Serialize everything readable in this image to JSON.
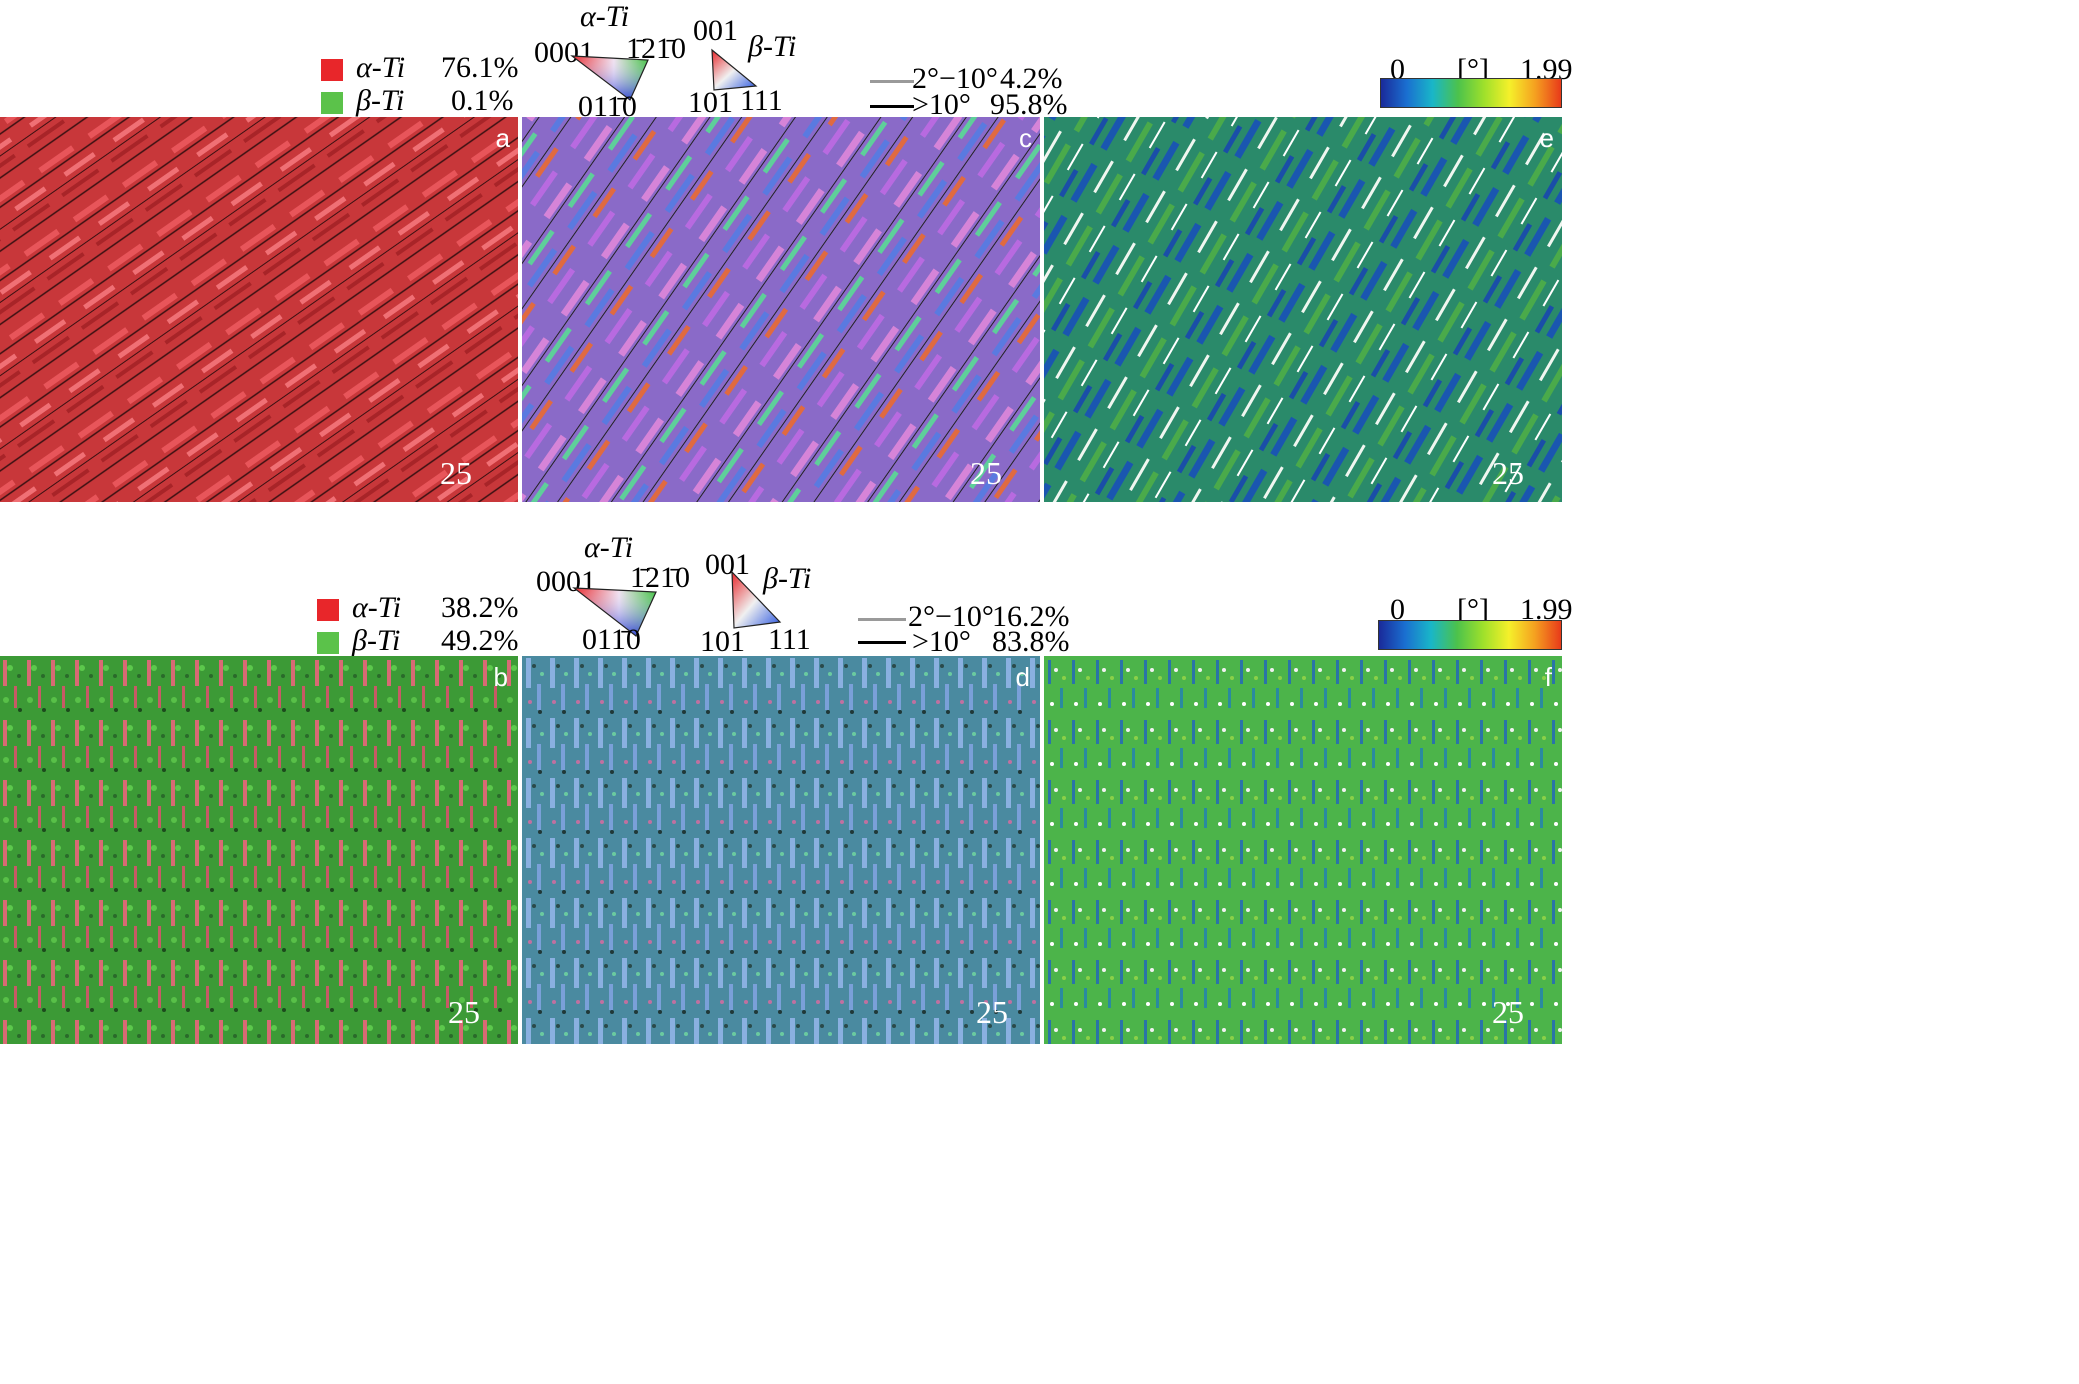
{
  "colors": {
    "alpha_phase": "#e8262a",
    "beta_phase": "#5bc24a",
    "low_angle_boundary": "#9a9a9a",
    "high_angle_boundary": "#000000"
  },
  "rows": [
    {
      "phase_legend": {
        "alpha": {
          "name": "α-Ti",
          "fraction": "76.1%"
        },
        "beta": {
          "name": "β-Ti",
          "fraction": "0.1%"
        }
      },
      "ipf_legend": {
        "alpha_title": "α-Ti",
        "alpha_corner_0001": "0001",
        "alpha_corner_1210": "1̄21̄0",
        "alpha_corner_0110": "011̄0",
        "beta_corner_001": "001",
        "beta_title": "β-Ti",
        "beta_corner_101": "101",
        "beta_corner_111": "111"
      },
      "boundary_legend": {
        "low_range": "2°−10°",
        "low_fraction": "4.2%",
        "high_range": ">10°",
        "high_fraction": "95.8%"
      },
      "kam_legend": {
        "min": "0",
        "unit": "[°]",
        "max": "1.99"
      },
      "panels": [
        {
          "label": "a",
          "scale_bar": "25 μm"
        },
        {
          "label": "c",
          "scale_bar": "25 μm"
        },
        {
          "label": "e",
          "scale_bar": "25 μm"
        }
      ]
    },
    {
      "phase_legend": {
        "alpha": {
          "name": "α-Ti",
          "fraction": "38.2%"
        },
        "beta": {
          "name": "β-Ti",
          "fraction": "49.2%"
        }
      },
      "ipf_legend": {
        "alpha_title": "α-Ti",
        "alpha_corner_0001": "0001",
        "alpha_corner_1210": "1̄21̄0",
        "alpha_corner_0110": "011̄0",
        "beta_corner_001": "001",
        "beta_title": "β-Ti",
        "beta_corner_101": "101",
        "beta_corner_111": "111"
      },
      "boundary_legend": {
        "low_range": "2°−10°",
        "low_fraction": "16.2%",
        "high_range": ">10°",
        "high_fraction": "83.8%"
      },
      "kam_legend": {
        "min": "0",
        "unit": "[°]",
        "max": "1.99"
      },
      "panels": [
        {
          "label": "b",
          "scale_bar": "25 μm"
        },
        {
          "label": "d",
          "scale_bar": "25 μm"
        },
        {
          "label": "f",
          "scale_bar": "25 μm"
        }
      ]
    }
  ]
}
